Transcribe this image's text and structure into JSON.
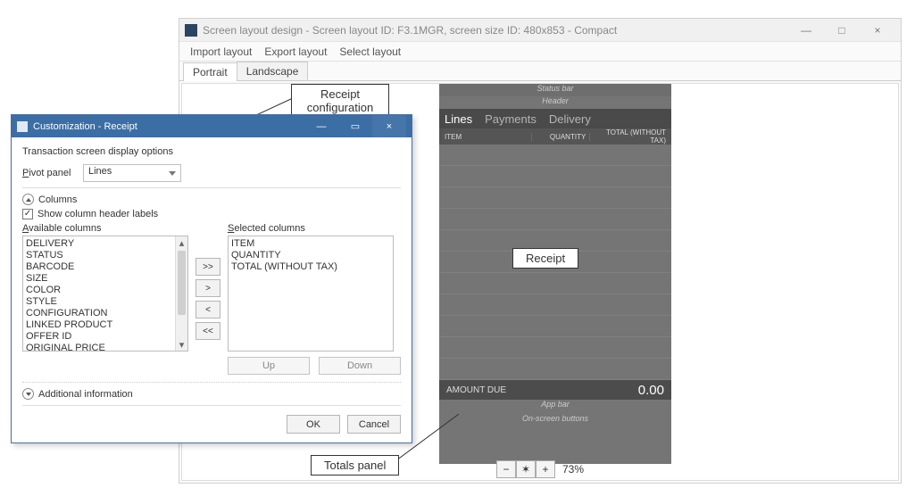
{
  "main_window": {
    "title": "Screen layout design - Screen layout ID: F3.1MGR, screen size ID: 480x853 - Compact",
    "menubar": {
      "import": "Import layout",
      "export": "Export layout",
      "select": "Select layout"
    },
    "tabs": {
      "portrait": "Portrait",
      "landscape": "Landscape"
    },
    "window_buttons": {
      "minimize": "—",
      "maximize": "□",
      "close": "×"
    }
  },
  "device": {
    "statusbar": "Status bar",
    "header": "Header",
    "pivot": {
      "lines": "Lines",
      "payments": "Payments",
      "delivery": "Delivery"
    },
    "columns": {
      "item": "ITEM",
      "quantity": "QUANTITY",
      "total": "TOTAL (WITHOUT TAX)"
    },
    "amount_due_label": "AMOUNT DUE",
    "amount_due_value": "0.00",
    "appbar": "App bar",
    "osbuttons": "On-screen buttons",
    "row_count": 11,
    "colors": {
      "body": "#757575",
      "pivot_bg": "#4a4a4a",
      "colhead_bg": "#555555",
      "row_border": "#808080",
      "amountdue_bg": "#4c4c4c"
    }
  },
  "zoom": {
    "minus": "−",
    "fit": "✶",
    "plus": "+",
    "percent": "73%"
  },
  "callouts": {
    "receipt_label": "Receipt",
    "totals_label": "Totals panel",
    "config_line1": "Receipt",
    "config_line2": "configuration"
  },
  "dialog": {
    "title": "Customization - Receipt",
    "caption": "Transaction screen display options",
    "pivot_label_pre": "P",
    "pivot_label_post": "ivot panel",
    "pivot_value": "Lines",
    "columns_section": "Columns",
    "show_header_checkbox": "Show column header labels",
    "available_label_pre": "A",
    "available_label_post": "vailable columns",
    "selected_label_pre": "S",
    "selected_label_post": "elected columns",
    "available_columns": [
      "DELIVERY",
      "STATUS",
      "BARCODE",
      "SIZE",
      "COLOR",
      "STYLE",
      "CONFIGURATION",
      "LINKED PRODUCT",
      "OFFER ID",
      "ORIGINAL PRICE"
    ],
    "selected_columns": [
      "ITEM",
      "QUANTITY",
      "TOTAL (WITHOUT TAX)"
    ],
    "move": {
      "add_all": ">>",
      "add": ">",
      "remove": "<",
      "remove_all": "<<"
    },
    "up": "Up",
    "down": "Down",
    "additional_info_label_pre": "A",
    "additional_info_label_post": "dditional information",
    "ok": "OK",
    "cancel": "Cancel",
    "titlebar_buttons": {
      "minimize": "—",
      "restore": "▭",
      "close": "×"
    },
    "colors": {
      "titlebar": "#3b6ea5"
    }
  }
}
